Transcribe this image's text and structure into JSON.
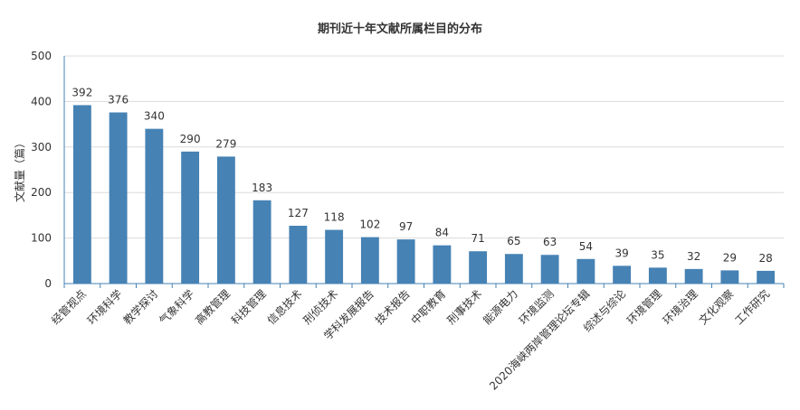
{
  "chart_data": {
    "type": "bar",
    "title": "期刊近十年文献所属栏目的分布",
    "xlabel": "",
    "ylabel": "文献量（篇）",
    "ylim": [
      0,
      500
    ],
    "yticks": [
      0,
      100,
      200,
      300,
      400,
      500
    ],
    "grid": true,
    "legend": "none",
    "bar_color": "#4682b4",
    "categories": [
      "经管视点",
      "环境科学",
      "教学探讨",
      "气象科学",
      "高教管理",
      "科技管理",
      "信息技术",
      "刑侦技术",
      "学科发展报告",
      "技术报告",
      "中职教育",
      "刑事技术",
      "能源电力",
      "环境监测",
      "2020海峡两岸管理论坛专辑",
      "综述与综论",
      "环境管理",
      "环境治理",
      "文化观察",
      "工作研究"
    ],
    "values": [
      392,
      376,
      340,
      290,
      279,
      183,
      127,
      118,
      102,
      97,
      84,
      71,
      65,
      63,
      54,
      39,
      35,
      32,
      29,
      28
    ]
  }
}
